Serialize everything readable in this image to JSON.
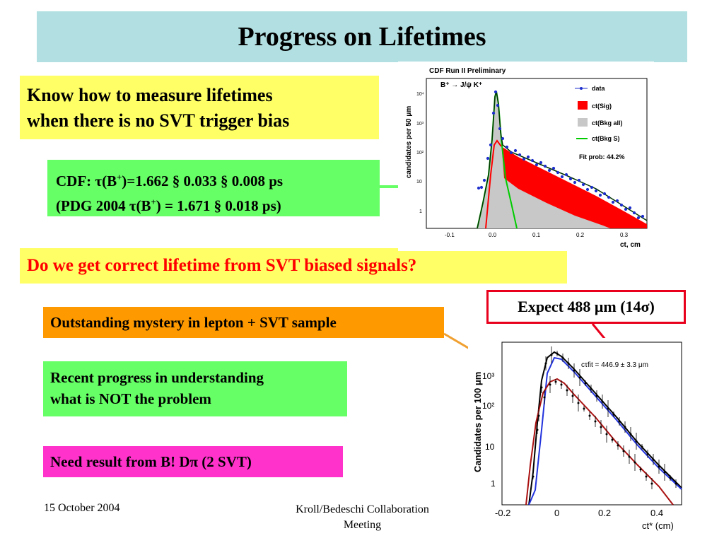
{
  "slide": {
    "title": "Progress on Lifetimes",
    "box1": {
      "line1": "Know how to measure lifetimes",
      "line2": "when there is no SVT trigger bias"
    },
    "cdf": {
      "l1_a": "CDF: ",
      "tau": "τ",
      "l1_b": "(B",
      "plus": "+",
      "l1_c": ")=1.662 § 0.033 § 0.008 ps",
      "l2_a": "(PDG 2004 ",
      "l2_b": "(B",
      "l2_c": ") = 1.671 § 0.018 ps)"
    },
    "question": "Do we get correct lifetime from SVT biased signals?",
    "expect": "Expect 488 μm (14σ)",
    "mystery": "Outstanding mystery in lepton + SVT sample",
    "progress": {
      "line1": "Recent progress in understanding",
      "line2": "what is NOT the problem"
    },
    "need": "Need result from B! Dπ (2 SVT)",
    "footer": {
      "date": "15 October 2004",
      "meeting_l1": "Kroll/Bedeschi Collaboration",
      "meeting_l2": "Meeting"
    }
  },
  "plot1": {
    "header": "CDF Run II Preliminary",
    "process": "B⁺ → J/ψ K⁺",
    "ylabel": "candidates per 50 μm",
    "xlabel": "ct, cm",
    "xticks": [
      "-0.1",
      "0.0",
      "0.1",
      "0.2",
      "0.3"
    ],
    "yticks": [
      "10⁴",
      "10³",
      "10²",
      "10",
      "1"
    ],
    "legend": [
      "data",
      "ct(Sig)",
      "ct(Bkg all)",
      "ct(Bkg S)"
    ],
    "fit_prob": "Fit prob: 44.2%",
    "colors": {
      "data": "#1d2ecc",
      "sig": "#ff0000",
      "bkg_all": "#c8c8c8",
      "bkg_s": "#00cc00"
    }
  },
  "plot2": {
    "ylabel": "Candidates per 100 μm",
    "xlabel": "ct* (cm)",
    "xticks": [
      "-0.2",
      "0",
      "0.2",
      "0.4"
    ],
    "yticks": [
      "10³",
      "10²",
      "10",
      "1"
    ],
    "annotation": "cτfit = 446.9 ± 3.3 μm",
    "colors": {
      "black": "#000000",
      "blue": "#2233dd",
      "red": "#aa1111"
    }
  }
}
